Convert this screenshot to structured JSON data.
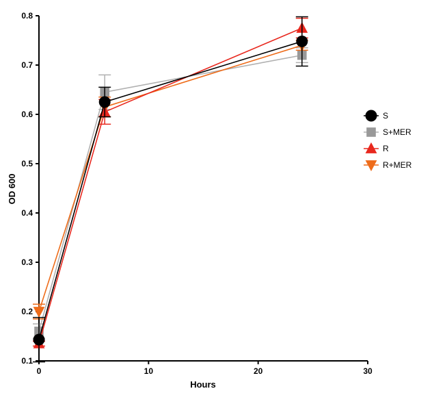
{
  "chart_data": {
    "type": "line",
    "title": "",
    "xlabel": "Hours",
    "ylabel": "OD 600",
    "xlim": [
      0,
      30
    ],
    "ylim": [
      0.1,
      0.8
    ],
    "x_ticks": [
      0,
      10,
      20,
      30
    ],
    "y_ticks": [
      0.1,
      0.2,
      0.3,
      0.4,
      0.5,
      0.6,
      0.7,
      0.8
    ],
    "grid": false,
    "legend_position": "right",
    "series": [
      {
        "name": "S+MER",
        "marker": "square",
        "color": "#999999",
        "line_color": "#b0b0b0",
        "x": [
          0,
          6,
          24
        ],
        "y": [
          0.16,
          0.645,
          0.72
        ],
        "err": [
          0.015,
          0.035,
          0.015
        ]
      },
      {
        "name": "R+MER",
        "marker": "triangle-down",
        "color": "#ee6c1a",
        "line_color": "#ee6c1a",
        "x": [
          0,
          6,
          24
        ],
        "y": [
          0.2,
          0.615,
          0.74
        ],
        "err": [
          0.015,
          0.02,
          0.01
        ]
      },
      {
        "name": "R",
        "marker": "triangle-up",
        "color": "#e8281e",
        "line_color": "#e8281e",
        "x": [
          0,
          6,
          24
        ],
        "y": [
          0.135,
          0.605,
          0.775
        ],
        "err": [
          0.005,
          0.025,
          0.02
        ]
      },
      {
        "name": "S",
        "marker": "circle",
        "color": "#000000",
        "line_color": "#000000",
        "x": [
          0,
          6,
          24
        ],
        "y": [
          0.143,
          0.625,
          0.748
        ],
        "err": [
          0.045,
          0.03,
          0.05
        ]
      }
    ],
    "legend_order": [
      "S",
      "S+MER",
      "R",
      "R+MER"
    ]
  }
}
